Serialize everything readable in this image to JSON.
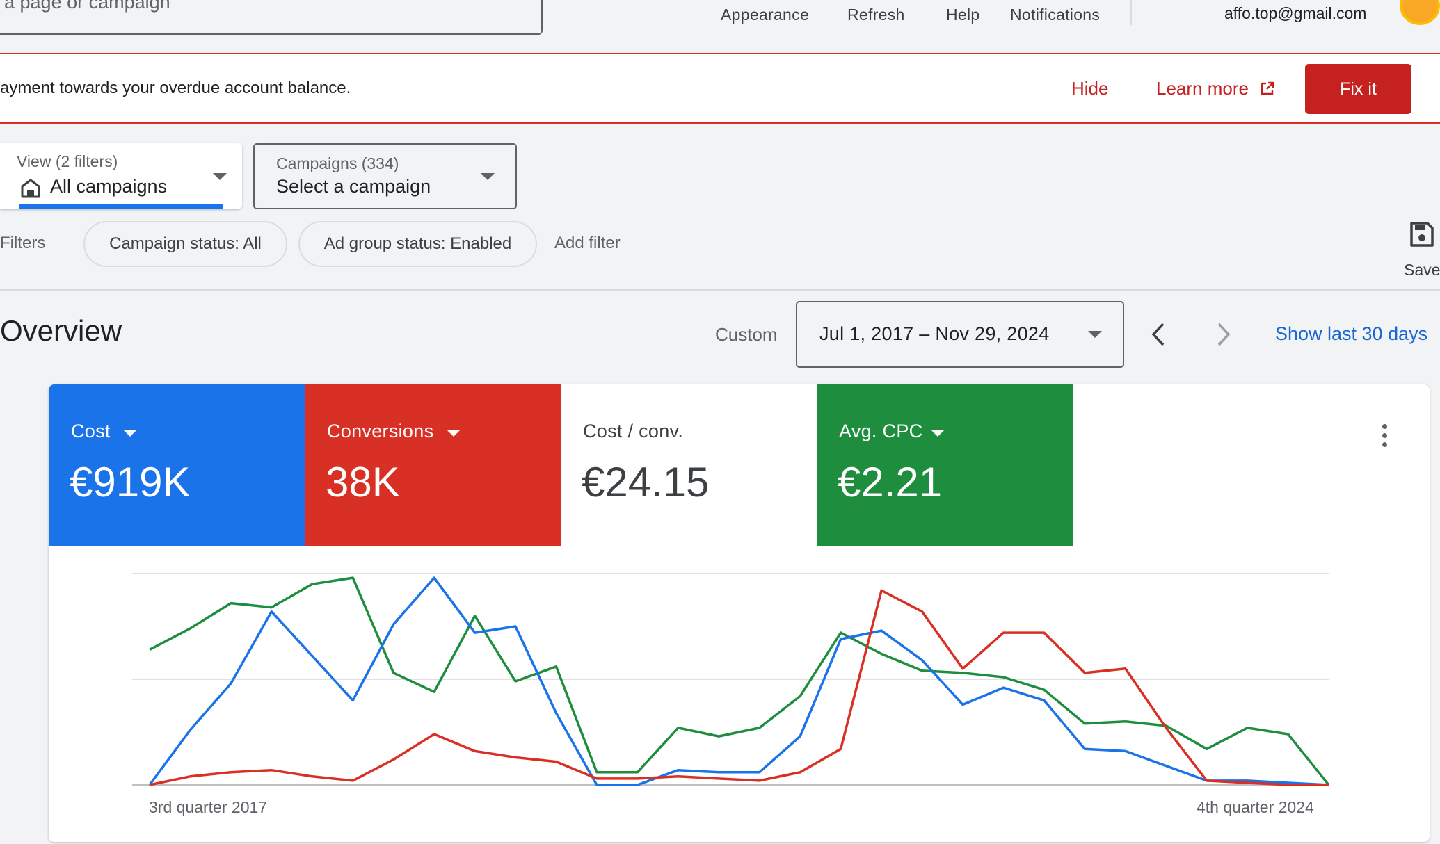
{
  "topbar": {
    "search_placeholder": "a page or campaign",
    "links": [
      "Appearance",
      "Refresh",
      "Help",
      "Notifications"
    ],
    "account_email": "affo.top@gmail.com"
  },
  "banner": {
    "message": "ayment towards your overdue account balance.",
    "hide": "Hide",
    "learn_more": "Learn more",
    "fix_it": "Fix it"
  },
  "view_selector": {
    "sub": "View (2 filters)",
    "main": "All campaigns"
  },
  "campaign_selector": {
    "sub": "Campaigns (334)",
    "main": "Select a campaign"
  },
  "filters": {
    "label": "Filters",
    "chips": [
      "Campaign status: All",
      "Ad group status: Enabled"
    ],
    "add_filter": "Add filter",
    "save": "Save"
  },
  "overview": {
    "title": "Overview",
    "custom_label": "Custom",
    "date_range": "Jul 1, 2017 – Nov 29, 2024",
    "show_last": "Show last 30 days"
  },
  "metrics": [
    {
      "label": "Cost",
      "value": "€919K",
      "color": "#1a73e8",
      "has_dropdown": true
    },
    {
      "label": "Conversions",
      "value": "38K",
      "color": "#d93025",
      "has_dropdown": true
    },
    {
      "label": "Cost / conv.",
      "value": "€24.15",
      "color": "#ffffff",
      "has_dropdown": false
    },
    {
      "label": "Avg. CPC",
      "value": "€2.21",
      "color": "#1e8e3e",
      "has_dropdown": true
    }
  ],
  "chart_data": {
    "type": "line",
    "x_start_label": "3rd quarter 2017",
    "x_end_label": "4th quarter 2024",
    "gridlines": 3,
    "ylim": [
      0,
      1
    ],
    "series": [
      {
        "name": "Cost",
        "color": "#1a73e8",
        "values": [
          0.0,
          0.26,
          0.48,
          0.82,
          0.61,
          0.4,
          0.76,
          0.98,
          0.72,
          0.75,
          0.34,
          0.0,
          0.0,
          0.07,
          0.06,
          0.06,
          0.23,
          0.69,
          0.73,
          0.59,
          0.38,
          0.46,
          0.4,
          0.17,
          0.16,
          0.09,
          0.02,
          0.02,
          0.01,
          0.0
        ]
      },
      {
        "name": "Conversions",
        "color": "#d93025",
        "values": [
          0.0,
          0.04,
          0.06,
          0.07,
          0.04,
          0.02,
          0.12,
          0.24,
          0.16,
          0.13,
          0.11,
          0.03,
          0.03,
          0.04,
          0.03,
          0.02,
          0.06,
          0.17,
          0.92,
          0.82,
          0.55,
          0.72,
          0.72,
          0.53,
          0.55,
          0.27,
          0.02,
          0.01,
          0.0,
          0.0
        ]
      },
      {
        "name": "Avg. CPC",
        "color": "#1e8e3e",
        "values": [
          0.64,
          0.74,
          0.86,
          0.84,
          0.95,
          0.98,
          0.53,
          0.44,
          0.8,
          0.49,
          0.56,
          0.06,
          0.06,
          0.27,
          0.23,
          0.27,
          0.42,
          0.72,
          0.62,
          0.54,
          0.53,
          0.51,
          0.45,
          0.29,
          0.3,
          0.28,
          0.17,
          0.27,
          0.24,
          0.0
        ]
      }
    ]
  }
}
